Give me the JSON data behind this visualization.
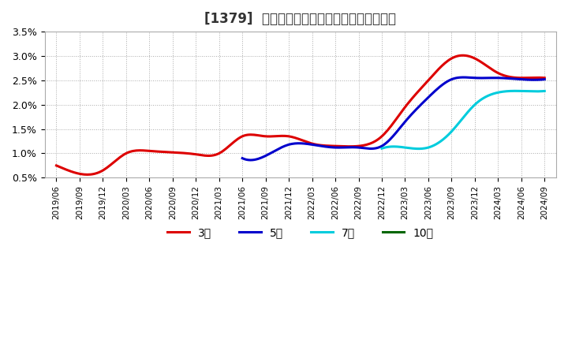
{
  "title": "[1379]  当期純利益マージンの標準偏差の推移",
  "ylim": [
    0.005,
    0.035
  ],
  "yticks": [
    0.005,
    0.01,
    0.015,
    0.02,
    0.025,
    0.03,
    0.035
  ],
  "ytick_labels": [
    "0.5%",
    "1.0%",
    "1.5%",
    "2.0%",
    "2.5%",
    "3.0%",
    "3.5%"
  ],
  "background_color": "#ffffff",
  "plot_bg_color": "#ffffff",
  "grid_color": "#aaaaaa",
  "xtick_labels": [
    "2019/06",
    "2019/09",
    "2019/12",
    "2020/03",
    "2020/06",
    "2020/09",
    "2020/12",
    "2021/03",
    "2021/06",
    "2021/09",
    "2021/12",
    "2022/03",
    "2022/06",
    "2022/09",
    "2022/12",
    "2023/03",
    "2023/06",
    "2023/09",
    "2023/12",
    "2024/03",
    "2024/06",
    "2024/09"
  ],
  "series_3y": {
    "color": "#dd0000",
    "label": "3年",
    "y": [
      0.0075,
      0.0058,
      0.0065,
      0.01,
      0.0105,
      0.0102,
      0.0098,
      0.01,
      0.0135,
      0.0135,
      0.0135,
      0.012,
      0.0115,
      0.0115,
      0.0135,
      0.0195,
      0.025,
      0.0295,
      0.0295,
      0.0265,
      0.0255,
      0.0255
    ]
  },
  "series_5y": {
    "color": "#0000cc",
    "label": "5年",
    "y": [
      null,
      null,
      null,
      null,
      null,
      null,
      null,
      null,
      0.009,
      0.0095,
      0.0118,
      0.0118,
      0.0112,
      0.0112,
      0.0115,
      0.0165,
      0.0215,
      0.0252,
      0.0255,
      0.0255,
      0.0252,
      0.0252
    ]
  },
  "series_7y": {
    "color": "#00ccdd",
    "label": "7年",
    "y": [
      null,
      null,
      null,
      null,
      null,
      null,
      null,
      null,
      null,
      null,
      null,
      null,
      null,
      null,
      0.011,
      0.0112,
      0.0112,
      0.0145,
      0.02,
      0.0225,
      0.0228,
      0.0228
    ]
  },
  "series_10y": {
    "color": "#006600",
    "label": "10年",
    "y": [
      null,
      null,
      null,
      null,
      null,
      null,
      null,
      null,
      null,
      null,
      null,
      null,
      null,
      null,
      null,
      null,
      null,
      null,
      null,
      null,
      null,
      null
    ]
  },
  "legend_entries": [
    {
      "label": "3年",
      "color": "#dd0000"
    },
    {
      "label": "5年",
      "color": "#0000cc"
    },
    {
      "label": "7年",
      "color": "#00ccdd"
    },
    {
      "label": "10年",
      "color": "#006600"
    }
  ]
}
